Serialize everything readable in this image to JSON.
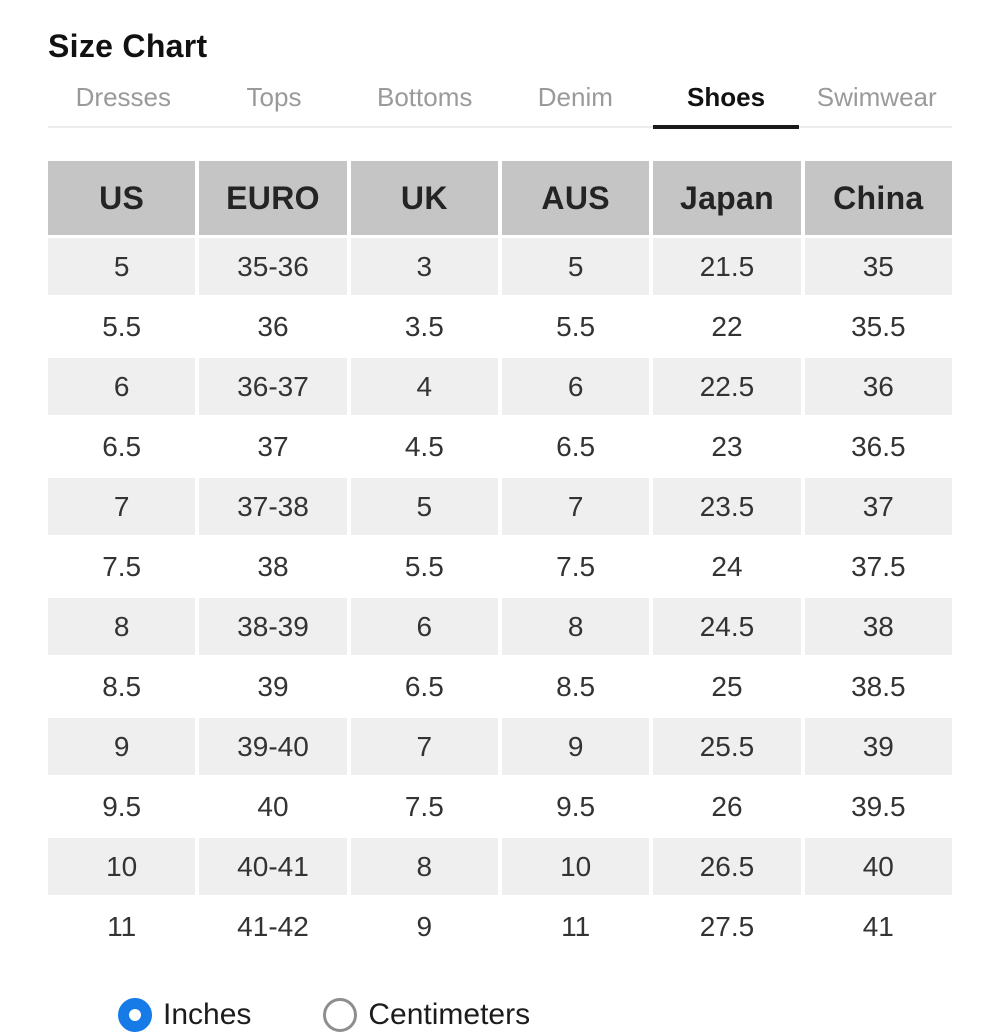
{
  "page": {
    "title": "Size Chart"
  },
  "tabs": [
    {
      "label": "Dresses",
      "active": false
    },
    {
      "label": "Tops",
      "active": false
    },
    {
      "label": "Bottoms",
      "active": false
    },
    {
      "label": "Denim",
      "active": false
    },
    {
      "label": "Shoes",
      "active": true
    },
    {
      "label": "Swimwear",
      "active": false
    }
  ],
  "table": {
    "columns": [
      "US",
      "EURO",
      "UK",
      "AUS",
      "Japan",
      "China"
    ],
    "rows": [
      [
        "5",
        "35-36",
        "3",
        "5",
        "21.5",
        "35"
      ],
      [
        "5.5",
        "36",
        "3.5",
        "5.5",
        "22",
        "35.5"
      ],
      [
        "6",
        "36-37",
        "4",
        "6",
        "22.5",
        "36"
      ],
      [
        "6.5",
        "37",
        "4.5",
        "6.5",
        "23",
        "36.5"
      ],
      [
        "7",
        "37-38",
        "5",
        "7",
        "23.5",
        "37"
      ],
      [
        "7.5",
        "38",
        "5.5",
        "7.5",
        "24",
        "37.5"
      ],
      [
        "8",
        "38-39",
        "6",
        "8",
        "24.5",
        "38"
      ],
      [
        "8.5",
        "39",
        "6.5",
        "8.5",
        "25",
        "38.5"
      ],
      [
        "9",
        "39-40",
        "7",
        "9",
        "25.5",
        "39"
      ],
      [
        "9.5",
        "40",
        "7.5",
        "9.5",
        "26",
        "39.5"
      ],
      [
        "10",
        "40-41",
        "8",
        "10",
        "26.5",
        "40"
      ],
      [
        "11",
        "41-42",
        "9",
        "11",
        "27.5",
        "41"
      ]
    ]
  },
  "units": {
    "options": [
      {
        "label": "Inches",
        "selected": true
      },
      {
        "label": "Centimeters",
        "selected": false
      }
    ]
  },
  "colors": {
    "accent": "#167be7",
    "radio_unselected_ring": "#8e8e8e",
    "header_bg": "#c5c5c5",
    "row_alt_bg": "#efefef",
    "tab_inactive": "#9a9a9a",
    "tab_active": "#111111",
    "divider": "#ececec",
    "text": "#333333"
  }
}
